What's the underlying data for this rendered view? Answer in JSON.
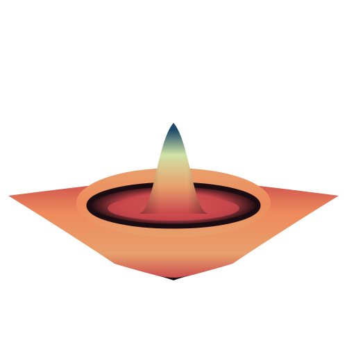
{
  "chart_data": {
    "type": "surface",
    "colors": [
      "#1d4a6b",
      "#cfe2a6",
      "#e8a06c",
      "#c9474c",
      "#1a0c10",
      "#ee8a5c"
    ]
  }
}
